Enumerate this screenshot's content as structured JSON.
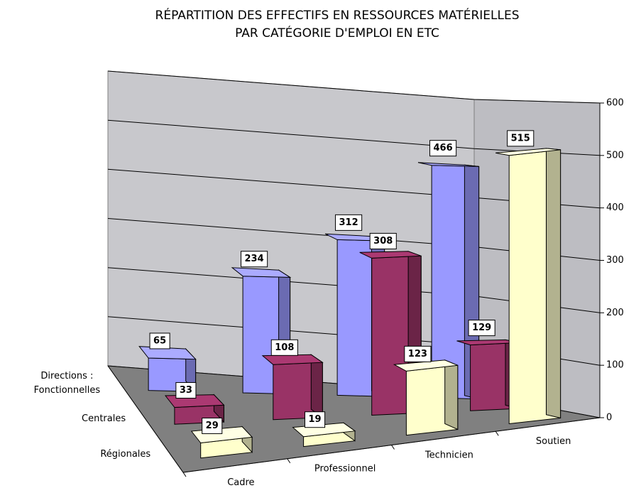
{
  "chart_data": {
    "type": "bar3d",
    "title": "RÉPARTITION DES EFFECTIFS EN RESSOURCES MATÉRIELLES\nPAR CATÉGORIE D'EMPLOI EN ETC",
    "categories": [
      "Cadre",
      "Professionnel",
      "Technicien",
      "Soutien"
    ],
    "series": [
      {
        "name": "Directions :\nFonctionnelles",
        "color": "#9999ff",
        "values": [
          65,
          234,
          312,
          466
        ]
      },
      {
        "name": "Centrales",
        "color": "#993366",
        "values": [
          33,
          108,
          308,
          129
        ]
      },
      {
        "name": "Régionales",
        "color": "#ffffcc",
        "values": [
          29,
          19,
          123,
          515
        ]
      }
    ],
    "ylim": [
      0,
      600
    ],
    "yticks": [
      0,
      100,
      200,
      300,
      400,
      500,
      600
    ],
    "grid": true
  }
}
